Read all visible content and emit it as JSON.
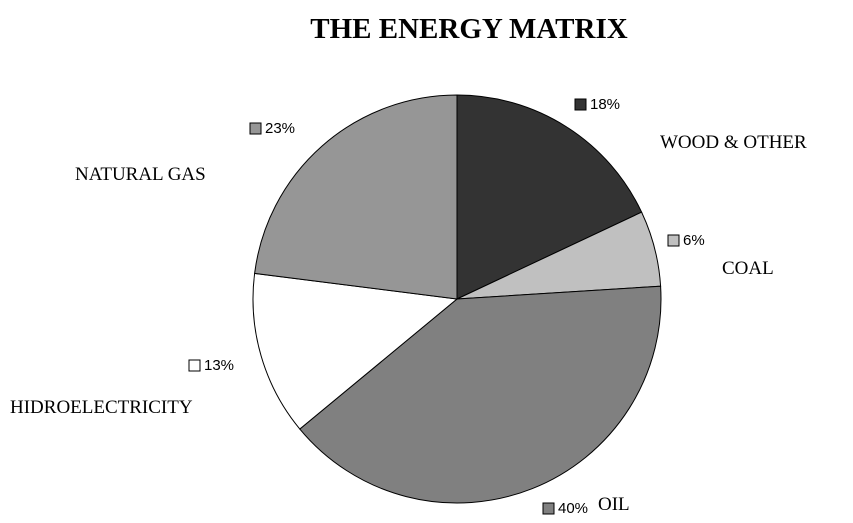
{
  "chart_data": {
    "type": "pie",
    "title": "THE ENERGY MATRIX",
    "categories": [
      "WOOD & OTHER",
      "COAL",
      "OIL",
      "HIDROELECTRICITY",
      "NATURAL GAS"
    ],
    "values": [
      18,
      6,
      40,
      13,
      23
    ],
    "value_labels": [
      "18%",
      "6%",
      "40%",
      "13%",
      "23%"
    ],
    "colors": [
      "#333333",
      "#c0c0c0",
      "#808080",
      "#ffffff",
      "#969696"
    ]
  }
}
